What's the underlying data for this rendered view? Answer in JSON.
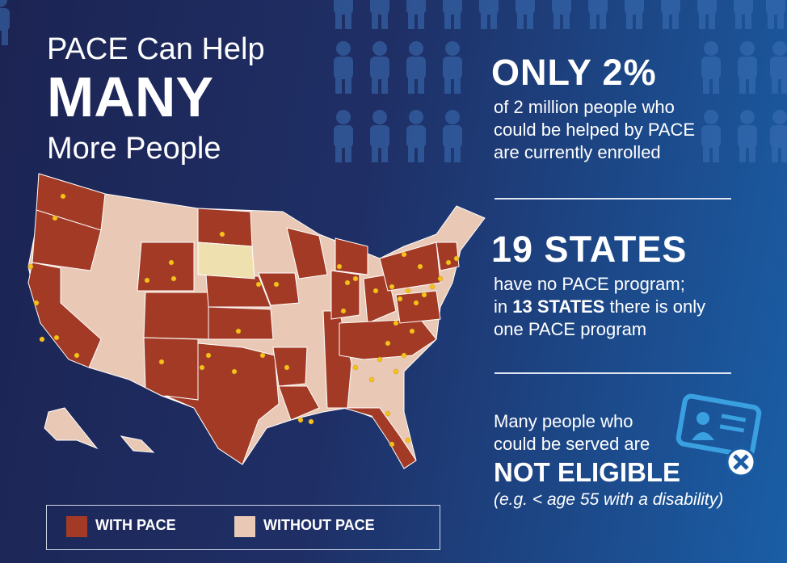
{
  "headline": {
    "line1": "PACE Can Help",
    "line2": "MANY",
    "line3": "More People"
  },
  "stat1": {
    "big": "ONLY 2%",
    "lines": [
      "of 2 million people who",
      "could be helped by PACE",
      "are currently enrolled"
    ]
  },
  "stat2": {
    "big": "19 STATES",
    "line1": "have no PACE program;",
    "line2_pre": "in",
    "line2_bold": "13 STATES",
    "line2_post": "there is only",
    "line3": "one PACE program"
  },
  "stat3": {
    "lines": [
      "Many people who",
      "could be served are"
    ],
    "big": "NOT ELIGIBLE",
    "note": "(e.g. < age 55 with a disability)"
  },
  "legend": {
    "with": "WITH PACE",
    "without": "WITHOUT PACE"
  }
}
